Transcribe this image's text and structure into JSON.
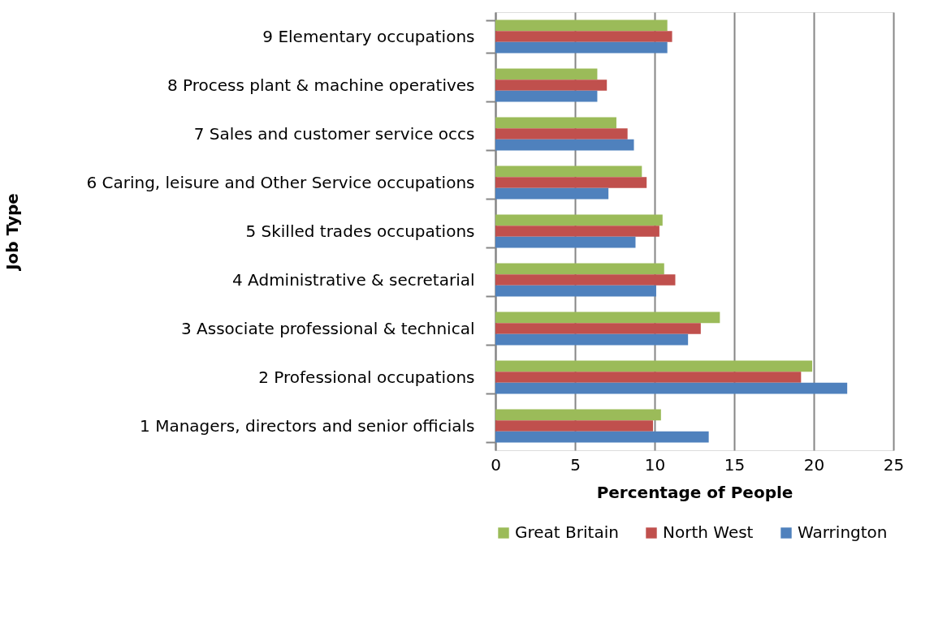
{
  "chart_data": {
    "type": "bar",
    "orientation": "horizontal",
    "xlabel": "Percentage of People",
    "ylabel": "Job Type",
    "categories": [
      "9 Elementary occupations",
      "8 Process plant & machine operatives",
      "7 Sales and customer service occs",
      "6 Caring, leisure and Other Service occupations",
      "5 Skilled trades occupations",
      "4 Administrative & secretarial",
      "3 Associate professional & technical",
      "2 Professional occupations",
      "1 Managers, directors and senior officials"
    ],
    "series": [
      {
        "name": "Great Britain",
        "color": "#9bbb59",
        "values": [
          10.8,
          6.4,
          7.6,
          9.2,
          10.5,
          10.6,
          14.1,
          19.9,
          10.4
        ]
      },
      {
        "name": "North West",
        "color": "#c0504d",
        "values": [
          11.1,
          7.0,
          8.3,
          9.5,
          10.3,
          11.3,
          12.9,
          19.2,
          9.9
        ]
      },
      {
        "name": "Warrington",
        "color": "#4f81bd",
        "values": [
          10.8,
          6.4,
          8.7,
          7.1,
          8.8,
          10.1,
          12.1,
          22.1,
          13.4
        ]
      }
    ],
    "xlim": [
      0,
      25
    ],
    "xticks": [
      0,
      5,
      10,
      15,
      20,
      25
    ],
    "grid": "x",
    "legend": "bottom"
  }
}
